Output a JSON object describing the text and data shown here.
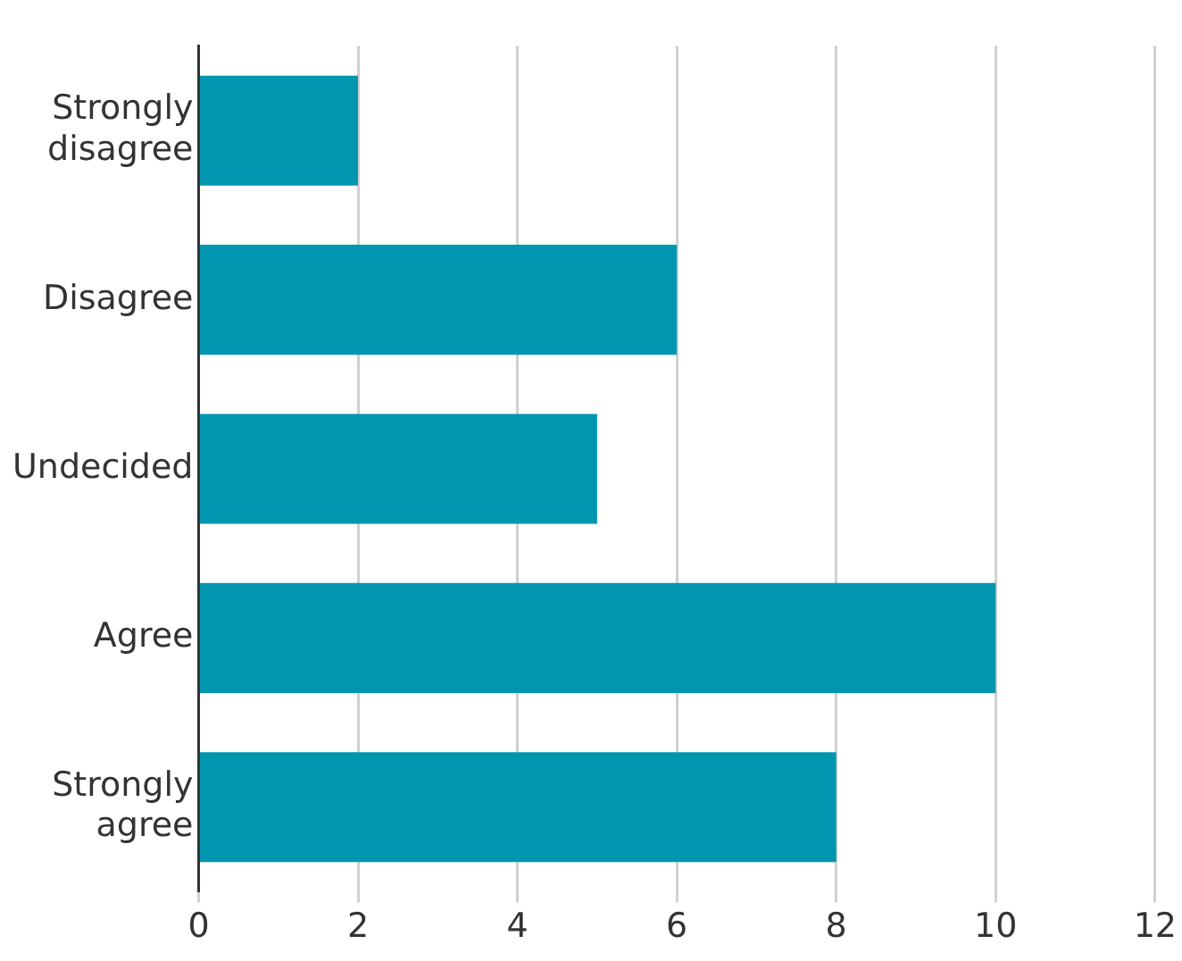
{
  "chart_data": {
    "type": "bar",
    "orientation": "horizontal",
    "categories": [
      "Strongly disagree",
      "Disagree",
      "Undecided",
      "Agree",
      "Strongly agree"
    ],
    "values": [
      2,
      6,
      5,
      10,
      8
    ],
    "color": "#0096b0",
    "xlim": [
      0,
      12
    ],
    "xticks": [
      0,
      2,
      4,
      6,
      8,
      10,
      12
    ],
    "grid": "x",
    "legend": false
  }
}
